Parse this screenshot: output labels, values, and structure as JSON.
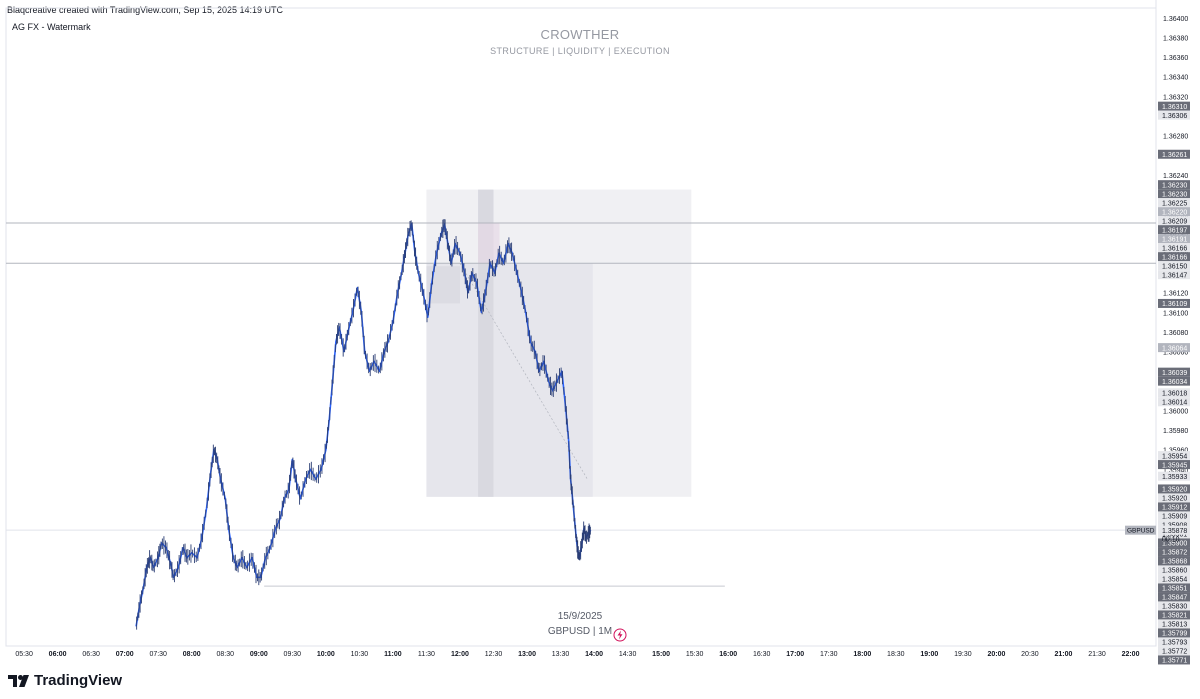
{
  "header": {
    "credit": "Blaqcreative created with TradingView.com, Sep 15, 2025 14:19 UTC",
    "indicator_label": "AG FX - Watermark"
  },
  "watermark": {
    "title": "CROWTHER",
    "subtitle": "STRUCTURE  | LIQUIDITY  |  EXECUTION"
  },
  "caption": {
    "date": "15/9/2025",
    "symbol": "GBPUSD | 1M"
  },
  "brand": {
    "name": "TradingView"
  },
  "colors": {
    "line": "#2962ff",
    "accent_red": "#d1125b",
    "box_fill": "#e9e9ee"
  },
  "chart_data": {
    "type": "line",
    "symbol": "GBPUSD",
    "timeframe": "1M",
    "price_label": "GBPUSD",
    "last_price": 1.35878,
    "countdown": "00:10",
    "ylim": [
      1.3576,
      1.3641
    ],
    "y_ticks": [
      1.364,
      1.3638,
      1.3636,
      1.3634,
      1.3632,
      1.363,
      1.3628,
      1.3626,
      1.3624,
      1.3622,
      1.362,
      1.3618,
      1.3616,
      1.3614,
      1.3612,
      1.361,
      1.3608,
      1.3606,
      1.3604,
      1.3602,
      1.36,
      1.3598,
      1.3596,
      1.3594,
      1.3592,
      1.359,
      1.3588,
      1.3586,
      1.3584,
      1.3582,
      1.358,
      1.3578
    ],
    "y_tick_labels": [
      "1.36400",
      "1.36380",
      "1.36360",
      "1.36340",
      "1.36320",
      "1.36300",
      "1.36280",
      "1.36260",
      "1.36240",
      "1.36220",
      "1.36200",
      "1.36180",
      "1.36160",
      "1.36140",
      "1.36120",
      "1.36100",
      "1.36080",
      "1.36060",
      "1.36040",
      "1.36020",
      "1.36000",
      "1.35980",
      "1.35960",
      "1.35940",
      "1.35920",
      "1.35900",
      "1.35880",
      "1.35860",
      "1.35840",
      "1.35820",
      "1.35800",
      "1.35780"
    ],
    "price_labels": [
      {
        "value": 1.3631,
        "text": "1.36310",
        "style": "dark"
      },
      {
        "value": 1.36306,
        "text": "1.36306",
        "style": "light"
      },
      {
        "value": 1.36261,
        "text": "1.36261",
        "style": "dark"
      },
      {
        "value": 1.3623,
        "text": "1.36230",
        "style": "dark"
      },
      {
        "value": 1.3623,
        "text": "1.36230",
        "style": "dark"
      },
      {
        "value": 1.36225,
        "text": "1.36225",
        "style": "light"
      },
      {
        "value": 1.3622,
        "text": "1.36220",
        "style": "medium"
      },
      {
        "value": 1.36209,
        "text": "1.36209",
        "style": "light"
      },
      {
        "value": 1.36197,
        "text": "1.36197",
        "style": "dark"
      },
      {
        "value": 1.36191,
        "text": "1.36191",
        "style": "medium"
      },
      {
        "value": 1.36166,
        "text": "1.36166",
        "style": "light"
      },
      {
        "value": 1.36166,
        "text": "1.36166",
        "style": "dark"
      },
      {
        "value": 1.3615,
        "text": "1.36150",
        "style": "light"
      },
      {
        "value": 1.36147,
        "text": "1.36147",
        "style": "light"
      },
      {
        "value": 1.36109,
        "text": "1.36109",
        "style": "dark"
      },
      {
        "value": 1.36064,
        "text": "1.36064",
        "style": "medium"
      },
      {
        "value": 1.36039,
        "text": "1.36039",
        "style": "dark"
      },
      {
        "value": 1.36034,
        "text": "1.36034",
        "style": "dark"
      },
      {
        "value": 1.36018,
        "text": "1.36018",
        "style": "light"
      },
      {
        "value": 1.36014,
        "text": "1.36014",
        "style": "light"
      },
      {
        "value": 1.35954,
        "text": "1.35954",
        "style": "light"
      },
      {
        "value": 1.35945,
        "text": "1.35945",
        "style": "dark"
      },
      {
        "value": 1.35933,
        "text": "1.35933",
        "style": "light"
      },
      {
        "value": 1.3592,
        "text": "1.35920",
        "style": "dark"
      },
      {
        "value": 1.3592,
        "text": "1.35920",
        "style": "light"
      },
      {
        "value": 1.35912,
        "text": "1.35912",
        "style": "dark"
      },
      {
        "value": 1.35909,
        "text": "1.35909",
        "style": "light"
      },
      {
        "value": 1.35908,
        "text": "1.35908",
        "style": "light"
      },
      {
        "value": 1.35901,
        "text": "1.35901",
        "style": "light"
      },
      {
        "value": 1.359,
        "text": "1.35900",
        "style": "dark"
      },
      {
        "value": 1.35872,
        "text": "1.35872",
        "style": "dark"
      },
      {
        "value": 1.35868,
        "text": "1.35868",
        "style": "dark"
      },
      {
        "value": 1.3586,
        "text": "1.35860",
        "style": "light"
      },
      {
        "value": 1.35854,
        "text": "1.35854",
        "style": "light"
      },
      {
        "value": 1.35851,
        "text": "1.35851",
        "style": "dark"
      },
      {
        "value": 1.35847,
        "text": "1.35847",
        "style": "dark"
      },
      {
        "value": 1.3583,
        "text": "1.35830",
        "style": "light"
      },
      {
        "value": 1.35821,
        "text": "1.35821",
        "style": "dark"
      },
      {
        "value": 1.35813,
        "text": "1.35813",
        "style": "light"
      },
      {
        "value": 1.35799,
        "text": "1.35799",
        "style": "dark"
      },
      {
        "value": 1.35793,
        "text": "1.35793",
        "style": "light"
      },
      {
        "value": 1.35772,
        "text": "1.35772",
        "style": "light"
      },
      {
        "value": 1.35771,
        "text": "1.35771",
        "style": "dark"
      }
    ],
    "x_ticks": [
      {
        "time": 5.5,
        "label": "05:30",
        "bold": false
      },
      {
        "time": 6.0,
        "label": "06:00",
        "bold": true
      },
      {
        "time": 6.5,
        "label": "06:30",
        "bold": false
      },
      {
        "time": 7.0,
        "label": "07:00",
        "bold": true
      },
      {
        "time": 7.5,
        "label": "07:30",
        "bold": false
      },
      {
        "time": 8.0,
        "label": "08:00",
        "bold": true
      },
      {
        "time": 8.5,
        "label": "08:30",
        "bold": false
      },
      {
        "time": 9.0,
        "label": "09:00",
        "bold": true
      },
      {
        "time": 9.5,
        "label": "09:30",
        "bold": false
      },
      {
        "time": 10.0,
        "label": "10:00",
        "bold": true
      },
      {
        "time": 10.5,
        "label": "10:30",
        "bold": false
      },
      {
        "time": 11.0,
        "label": "11:00",
        "bold": true
      },
      {
        "time": 11.5,
        "label": "11:30",
        "bold": false
      },
      {
        "time": 12.0,
        "label": "12:00",
        "bold": true
      },
      {
        "time": 12.5,
        "label": "12:30",
        "bold": false
      },
      {
        "time": 13.0,
        "label": "13:00",
        "bold": true
      },
      {
        "time": 13.5,
        "label": "13:30",
        "bold": false
      },
      {
        "time": 14.0,
        "label": "14:00",
        "bold": true
      },
      {
        "time": 14.5,
        "label": "14:30",
        "bold": false
      },
      {
        "time": 15.0,
        "label": "15:00",
        "bold": true
      },
      {
        "time": 15.5,
        "label": "15:30",
        "bold": false
      },
      {
        "time": 16.0,
        "label": "16:00",
        "bold": true
      },
      {
        "time": 16.5,
        "label": "16:30",
        "bold": false
      },
      {
        "time": 17.0,
        "label": "17:00",
        "bold": true
      },
      {
        "time": 17.5,
        "label": "17:30",
        "bold": false
      },
      {
        "time": 18.0,
        "label": "18:00",
        "bold": true
      },
      {
        "time": 18.5,
        "label": "18:30",
        "bold": false
      },
      {
        "time": 19.0,
        "label": "19:00",
        "bold": true
      },
      {
        "time": 19.5,
        "label": "19:30",
        "bold": false
      },
      {
        "time": 20.0,
        "label": "20:00",
        "bold": true
      },
      {
        "time": 20.5,
        "label": "20:30",
        "bold": false
      },
      {
        "time": 21.0,
        "label": "21:00",
        "bold": true
      },
      {
        "time": 21.5,
        "label": "21:30",
        "bold": false
      },
      {
        "time": 22.0,
        "label": "22:00",
        "bold": true
      }
    ],
    "xlim": [
      5.23,
      22.38
    ],
    "series": [
      {
        "values": [
          [
            7.17,
            1.3578
          ],
          [
            7.22,
            1.358
          ],
          [
            7.28,
            1.3582
          ],
          [
            7.33,
            1.3584
          ],
          [
            7.38,
            1.3585
          ],
          [
            7.43,
            1.3584
          ],
          [
            7.5,
            1.3585
          ],
          [
            7.55,
            1.35865
          ],
          [
            7.62,
            1.3586
          ],
          [
            7.68,
            1.35845
          ],
          [
            7.73,
            1.3583
          ],
          [
            7.8,
            1.3584
          ],
          [
            7.87,
            1.3586
          ],
          [
            7.93,
            1.3585
          ],
          [
            8.0,
            1.35855
          ],
          [
            8.08,
            1.3585
          ],
          [
            8.15,
            1.3587
          ],
          [
            8.22,
            1.359
          ],
          [
            8.28,
            1.35935
          ],
          [
            8.33,
            1.3596
          ],
          [
            8.38,
            1.3595
          ],
          [
            8.43,
            1.3593
          ],
          [
            8.5,
            1.3591
          ],
          [
            8.55,
            1.3588
          ],
          [
            8.62,
            1.3585
          ],
          [
            8.68,
            1.3584
          ],
          [
            8.75,
            1.3585
          ],
          [
            8.82,
            1.3584
          ],
          [
            8.9,
            1.3585
          ],
          [
            8.97,
            1.3583
          ],
          [
            9.03,
            1.3583
          ],
          [
            9.1,
            1.3585
          ],
          [
            9.17,
            1.3586
          ],
          [
            9.25,
            1.3588
          ],
          [
            9.32,
            1.3589
          ],
          [
            9.38,
            1.3591
          ],
          [
            9.45,
            1.3592
          ],
          [
            9.5,
            1.3595
          ],
          [
            9.55,
            1.3593
          ],
          [
            9.62,
            1.3591
          ],
          [
            9.7,
            1.3593
          ],
          [
            9.77,
            1.3594
          ],
          [
            9.85,
            1.3593
          ],
          [
            9.93,
            1.3594
          ],
          [
            10.0,
            1.3596
          ],
          [
            10.05,
            1.3599
          ],
          [
            10.1,
            1.3603
          ],
          [
            10.15,
            1.3607
          ],
          [
            10.2,
            1.36085
          ],
          [
            10.27,
            1.3606
          ],
          [
            10.33,
            1.3608
          ],
          [
            10.4,
            1.361
          ],
          [
            10.47,
            1.36125
          ],
          [
            10.53,
            1.361
          ],
          [
            10.58,
            1.3606
          ],
          [
            10.65,
            1.3604
          ],
          [
            10.72,
            1.3605
          ],
          [
            10.8,
            1.3604
          ],
          [
            10.87,
            1.3606
          ],
          [
            10.93,
            1.3607
          ],
          [
            11.0,
            1.3609
          ],
          [
            11.07,
            1.3612
          ],
          [
            11.13,
            1.3614
          ],
          [
            11.18,
            1.3616
          ],
          [
            11.23,
            1.3618
          ],
          [
            11.28,
            1.3619
          ],
          [
            11.33,
            1.3616
          ],
          [
            11.38,
            1.3614
          ],
          [
            11.45,
            1.3612
          ],
          [
            11.52,
            1.36095
          ],
          [
            11.58,
            1.3613
          ],
          [
            11.65,
            1.3616
          ],
          [
            11.72,
            1.3618
          ],
          [
            11.77,
            1.3619
          ],
          [
            11.82,
            1.3617
          ],
          [
            11.87,
            1.3615
          ],
          [
            11.93,
            1.3617
          ],
          [
            12.0,
            1.3616
          ],
          [
            12.07,
            1.3614
          ],
          [
            12.12,
            1.3612
          ],
          [
            12.18,
            1.3614
          ],
          [
            12.25,
            1.3613
          ],
          [
            12.32,
            1.361
          ],
          [
            12.38,
            1.3612
          ],
          [
            12.45,
            1.3615
          ],
          [
            12.52,
            1.3614
          ],
          [
            12.58,
            1.3616
          ],
          [
            12.65,
            1.3615
          ],
          [
            12.72,
            1.3617
          ],
          [
            12.78,
            1.3616
          ],
          [
            12.85,
            1.3614
          ],
          [
            12.92,
            1.3612
          ],
          [
            12.98,
            1.361
          ],
          [
            13.05,
            1.3607
          ],
          [
            13.12,
            1.3606
          ],
          [
            13.18,
            1.3604
          ],
          [
            13.25,
            1.3605
          ],
          [
            13.32,
            1.3603
          ],
          [
            13.38,
            1.3602
          ],
          [
            13.45,
            1.3603
          ],
          [
            13.52,
            1.3604
          ],
          [
            13.58,
            1.36
          ],
          [
            13.62,
            1.3597
          ],
          [
            13.65,
            1.3593
          ],
          [
            13.68,
            1.3591
          ],
          [
            13.72,
            1.3588
          ],
          [
            13.75,
            1.3586
          ],
          [
            13.78,
            1.3585
          ],
          [
            13.82,
            1.35865
          ],
          [
            13.85,
            1.3588
          ],
          [
            13.88,
            1.3587
          ],
          [
            13.92,
            1.35875
          ],
          [
            13.95,
            1.35878
          ]
        ]
      }
    ],
    "annotations": {
      "horizontal_levels": [
        1.36191,
        1.3615,
        1.35878
      ],
      "range_box": {
        "time_start": 11.5,
        "time_end": 15.45,
        "price_top": 1.36225,
        "price_bottom": 1.35912
      },
      "inner_box": {
        "time_start": 11.5,
        "time_end": 13.98,
        "price_top": 1.3615,
        "price_bottom": 1.35912
      },
      "shaded_column": {
        "time_start": 12.27,
        "time_end": 12.5
      },
      "support_line": {
        "time_start": 9.08,
        "time_end": 15.95,
        "price": 1.35821
      }
    }
  }
}
